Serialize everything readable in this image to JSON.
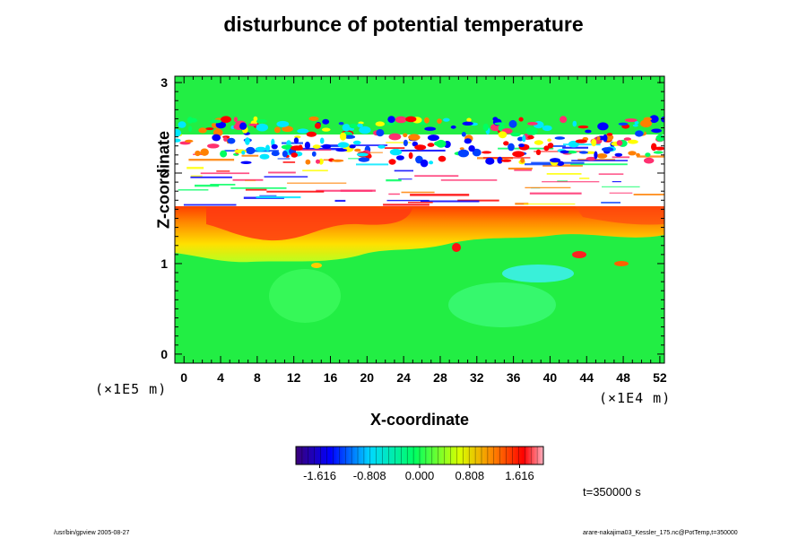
{
  "chart_data": {
    "type": "heatmap",
    "title": "disturbunce of potential temperature",
    "xlabel": "X-coordinate",
    "ylabel": "Z-coordinate",
    "x_unit": "(×1E4 m)",
    "y_unit": "(×1E5 m)",
    "xlim": [
      -1,
      52.5
    ],
    "ylim": [
      -0.1,
      3.07
    ],
    "x_ticks": [
      "0",
      "4",
      "8",
      "12",
      "16",
      "20",
      "24",
      "28",
      "32",
      "36",
      "40",
      "44",
      "48",
      "52"
    ],
    "y_ticks": [
      "0",
      "1",
      "2",
      "3"
    ],
    "colorbar": {
      "ticks": [
        "-1.616",
        "-0.808",
        "0.000",
        "0.808",
        "1.616"
      ],
      "range": [
        -2.0,
        2.0
      ],
      "colors": [
        "#3a0078",
        "#0000ff",
        "#00d8ff",
        "#00ff60",
        "#d8ff00",
        "#ff8000",
        "#ff0000",
        "#ffb0c0"
      ]
    },
    "features": [
      {
        "desc": "upper oscillating layer",
        "z_range": [
          2.3,
          2.6
        ],
        "value_range": [
          -1.8,
          1.8
        ]
      },
      {
        "desc": "saturated band (values outside range)",
        "z_range": [
          1.75,
          2.3
        ]
      },
      {
        "desc": "warm anomaly layer",
        "z_range": [
          1.1,
          1.7
        ],
        "x_range": [
          0,
          52
        ],
        "peak": 1.9
      },
      {
        "desc": "near-zero background",
        "z_range": [
          0,
          1.1
        ],
        "value": 0.0
      }
    ]
  },
  "annotations": {
    "time": "t=350000 s",
    "footer_left": "/usr/bin/gpview 2005-08-27",
    "footer_right": "arare-nakajima03_Kessler_175.nc@PotTemp,t=350000"
  }
}
